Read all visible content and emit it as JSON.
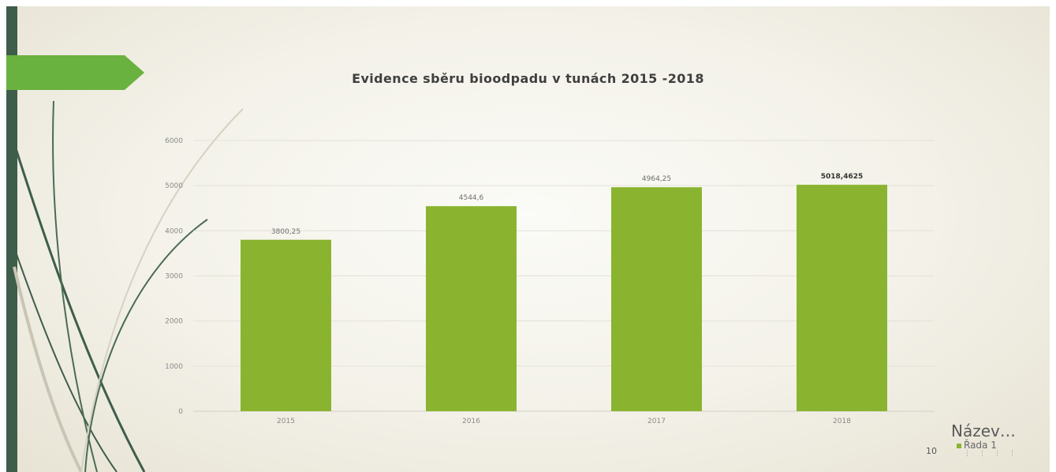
{
  "slide": {
    "page_number": "10",
    "legend_title": "Název…",
    "legend_dots": "⋮⋮⋮⋮"
  },
  "colors": {
    "bar": "#8ab430",
    "accent_green": "#6ab23f",
    "side_bar": "#3e5d4b"
  },
  "chart_data": {
    "type": "bar",
    "title": "Evidence sběru bioodpadu v tunách 2015 -2018",
    "categories": [
      "2015",
      "2016",
      "2017",
      "2018"
    ],
    "series": [
      {
        "name": "Řada 1",
        "values": [
          3800.25,
          4544.6,
          4964.25,
          5018.4625
        ],
        "labels": [
          "3800,25",
          "4544,6",
          "4964,25",
          "5018,4625"
        ]
      }
    ],
    "ylim": [
      0,
      6000
    ],
    "yticks": [
      0,
      1000,
      2000,
      3000,
      4000,
      5000,
      6000
    ],
    "grid": true,
    "legend": "bottom-right"
  }
}
